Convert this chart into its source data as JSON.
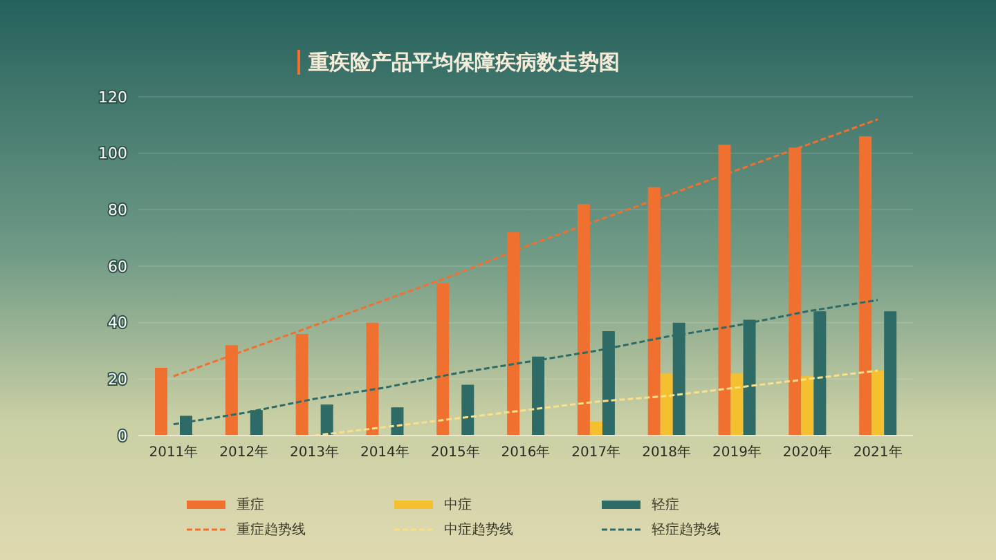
{
  "chart_data": {
    "type": "bar",
    "title": "重疾险产品平均保障疾病数走势图",
    "categories": [
      "2011年",
      "2012年",
      "2013年",
      "2014年",
      "2015年",
      "2016年",
      "2017年",
      "2018年",
      "2019年",
      "2020年",
      "2021年"
    ],
    "series": [
      {
        "name": "重症",
        "color": "#f07030",
        "values": [
          24,
          32,
          36,
          40,
          54,
          72,
          82,
          88,
          103,
          102,
          106
        ]
      },
      {
        "name": "中症",
        "color": "#f5c030",
        "values": [
          0,
          0,
          0,
          0,
          0,
          0,
          5,
          22,
          22,
          21,
          23
        ]
      },
      {
        "name": "轻症",
        "color": "#2e6b66",
        "values": [
          7,
          9,
          11,
          10,
          18,
          28,
          37,
          40,
          41,
          44,
          44
        ]
      },
      {
        "name": "重症趋势线",
        "type": "line",
        "line_style": "dashed",
        "color": "#f07030",
        "values": [
          21,
          30,
          39,
          48,
          57,
          67,
          76,
          85,
          94,
          103,
          112
        ]
      },
      {
        "name": "中症趋势线",
        "type": "line",
        "line_style": "dashed",
        "color": "#fbe08a",
        "values": [
          null,
          null,
          0,
          3,
          6,
          9,
          12,
          14,
          17,
          20,
          23
        ]
      },
      {
        "name": "轻症趋势线",
        "type": "line",
        "line_style": "dashed",
        "color": "#2e6b66",
        "values": [
          4,
          8,
          13,
          17,
          22,
          26,
          30,
          35,
          39,
          44,
          48
        ]
      }
    ],
    "ylim": [
      0,
      120
    ],
    "yticks": [
      0,
      20,
      40,
      60,
      80,
      100,
      120
    ],
    "grid": "y",
    "legend": "bottom",
    "marker": "none"
  }
}
